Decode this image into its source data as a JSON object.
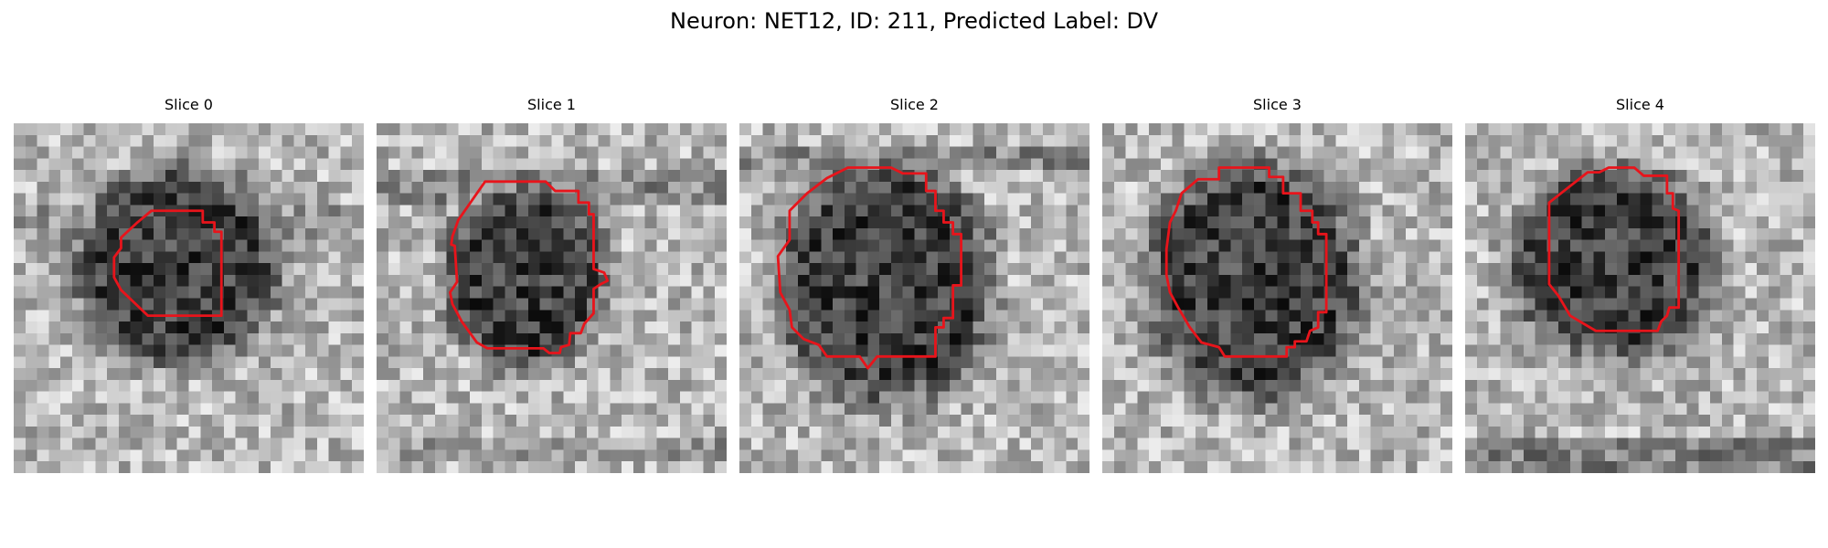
{
  "figure": {
    "title": "Neuron: NET12, ID: 211, Predicted Label: DV"
  },
  "panels": [
    {
      "title": "Slice 0"
    },
    {
      "title": "Slice 1"
    },
    {
      "title": "Slice 2"
    },
    {
      "title": "Slice 3"
    },
    {
      "title": "Slice 4"
    }
  ],
  "colors": {
    "contour": "#e8141b",
    "colormap": "gray"
  }
}
